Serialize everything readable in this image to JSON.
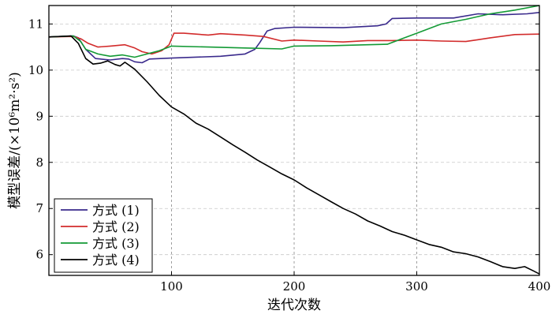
{
  "chart_data": {
    "type": "line",
    "xlabel": "迭代次数",
    "ylabel": "模型误差/(×10⁶m²·s²)",
    "xlim": [
      0,
      400
    ],
    "ylim": [
      5.55,
      11.4
    ],
    "x_ticks": [
      100,
      200,
      300,
      400
    ],
    "y_ticks": [
      6,
      7,
      8,
      9,
      10,
      11
    ],
    "grid": true,
    "legend_position": "lower-left",
    "series": [
      {
        "name": "方式 (1)",
        "color": "#3a2a8c",
        "points": [
          [
            0,
            10.72
          ],
          [
            20,
            10.74
          ],
          [
            24,
            10.7
          ],
          [
            30,
            10.45
          ],
          [
            38,
            10.25
          ],
          [
            50,
            10.22
          ],
          [
            60,
            10.25
          ],
          [
            65,
            10.24
          ],
          [
            70,
            10.18
          ],
          [
            76,
            10.16
          ],
          [
            82,
            10.24
          ],
          [
            100,
            10.26
          ],
          [
            140,
            10.3
          ],
          [
            160,
            10.35
          ],
          [
            168,
            10.45
          ],
          [
            172,
            10.6
          ],
          [
            178,
            10.85
          ],
          [
            184,
            10.9
          ],
          [
            200,
            10.93
          ],
          [
            240,
            10.92
          ],
          [
            268,
            10.96
          ],
          [
            275,
            11.0
          ],
          [
            280,
            11.12
          ],
          [
            300,
            11.13
          ],
          [
            330,
            11.13
          ],
          [
            350,
            11.22
          ],
          [
            370,
            11.2
          ],
          [
            390,
            11.22
          ],
          [
            400,
            11.25
          ]
        ]
      },
      {
        "name": "方式 (2)",
        "color": "#d22b2b",
        "points": [
          [
            0,
            10.72
          ],
          [
            20,
            10.73
          ],
          [
            26,
            10.68
          ],
          [
            32,
            10.58
          ],
          [
            40,
            10.5
          ],
          [
            50,
            10.52
          ],
          [
            62,
            10.55
          ],
          [
            70,
            10.48
          ],
          [
            76,
            10.4
          ],
          [
            84,
            10.35
          ],
          [
            92,
            10.42
          ],
          [
            98,
            10.55
          ],
          [
            102,
            10.8
          ],
          [
            110,
            10.8
          ],
          [
            130,
            10.76
          ],
          [
            140,
            10.79
          ],
          [
            160,
            10.76
          ],
          [
            175,
            10.73
          ],
          [
            190,
            10.63
          ],
          [
            200,
            10.65
          ],
          [
            220,
            10.63
          ],
          [
            240,
            10.61
          ],
          [
            260,
            10.64
          ],
          [
            280,
            10.64
          ],
          [
            300,
            10.65
          ],
          [
            320,
            10.63
          ],
          [
            340,
            10.62
          ],
          [
            350,
            10.66
          ],
          [
            360,
            10.7
          ],
          [
            380,
            10.77
          ],
          [
            400,
            10.78
          ]
        ]
      },
      {
        "name": "方式 (3)",
        "color": "#139a35",
        "points": [
          [
            0,
            10.72
          ],
          [
            20,
            10.74
          ],
          [
            26,
            10.62
          ],
          [
            30,
            10.45
          ],
          [
            40,
            10.35
          ],
          [
            50,
            10.3
          ],
          [
            60,
            10.33
          ],
          [
            70,
            10.28
          ],
          [
            80,
            10.35
          ],
          [
            90,
            10.42
          ],
          [
            96,
            10.48
          ],
          [
            100,
            10.52
          ],
          [
            130,
            10.5
          ],
          [
            160,
            10.48
          ],
          [
            190,
            10.46
          ],
          [
            200,
            10.52
          ],
          [
            230,
            10.53
          ],
          [
            260,
            10.55
          ],
          [
            276,
            10.56
          ],
          [
            290,
            10.7
          ],
          [
            300,
            10.8
          ],
          [
            310,
            10.9
          ],
          [
            320,
            11.0
          ],
          [
            340,
            11.1
          ],
          [
            360,
            11.22
          ],
          [
            380,
            11.3
          ],
          [
            400,
            11.4
          ]
        ]
      },
      {
        "name": "方式 (4)",
        "color": "#000000",
        "points": [
          [
            0,
            10.72
          ],
          [
            18,
            10.74
          ],
          [
            24,
            10.58
          ],
          [
            30,
            10.25
          ],
          [
            36,
            10.13
          ],
          [
            42,
            10.15
          ],
          [
            48,
            10.2
          ],
          [
            54,
            10.12
          ],
          [
            58,
            10.09
          ],
          [
            62,
            10.17
          ],
          [
            70,
            10.02
          ],
          [
            80,
            9.75
          ],
          [
            90,
            9.45
          ],
          [
            100,
            9.2
          ],
          [
            110,
            9.05
          ],
          [
            120,
            8.85
          ],
          [
            130,
            8.72
          ],
          [
            140,
            8.55
          ],
          [
            150,
            8.38
          ],
          [
            160,
            8.22
          ],
          [
            170,
            8.05
          ],
          [
            180,
            7.9
          ],
          [
            190,
            7.75
          ],
          [
            200,
            7.62
          ],
          [
            210,
            7.45
          ],
          [
            220,
            7.3
          ],
          [
            230,
            7.15
          ],
          [
            240,
            7.0
          ],
          [
            250,
            6.88
          ],
          [
            260,
            6.73
          ],
          [
            270,
            6.62
          ],
          [
            280,
            6.5
          ],
          [
            290,
            6.42
          ],
          [
            300,
            6.32
          ],
          [
            310,
            6.22
          ],
          [
            320,
            6.16
          ],
          [
            330,
            6.06
          ],
          [
            340,
            6.02
          ],
          [
            350,
            5.95
          ],
          [
            360,
            5.85
          ],
          [
            370,
            5.74
          ],
          [
            380,
            5.7
          ],
          [
            388,
            5.74
          ],
          [
            395,
            5.65
          ],
          [
            400,
            5.58
          ]
        ]
      }
    ]
  }
}
